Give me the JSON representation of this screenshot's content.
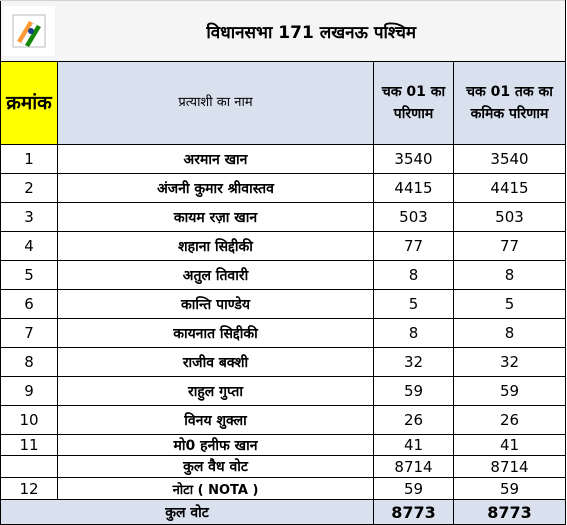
{
  "title": "विधानसभा 171 लखनऊ पश्चिम",
  "headers": {
    "serial": "क्रमांक",
    "name": "प्रत्याशी का नाम",
    "round_result": "चक 01 का परिणाम",
    "cumulative": "चक 01 तक का कमिक परिणाम"
  },
  "rows": [
    {
      "serial": "1",
      "name": "अरमान खान",
      "round": "3540",
      "cumulative": "3540"
    },
    {
      "serial": "2",
      "name": "अंजनी कुमार श्रीवास्तव",
      "round": "4415",
      "cumulative": "4415"
    },
    {
      "serial": "3",
      "name": "कायम रज़ा खान",
      "round": "503",
      "cumulative": "503"
    },
    {
      "serial": "4",
      "name": "शहाना सिद्दीकी",
      "round": "77",
      "cumulative": "77"
    },
    {
      "serial": "5",
      "name": "अतुल तिवारी",
      "round": "8",
      "cumulative": "8"
    },
    {
      "serial": "6",
      "name": "कान्ति पाण्डेय",
      "round": "5",
      "cumulative": "5"
    },
    {
      "serial": "7",
      "name": "कायनात सिद्दीकी",
      "round": "8",
      "cumulative": "8"
    },
    {
      "serial": "8",
      "name": "राजीव बक्शी",
      "round": "32",
      "cumulative": "32"
    },
    {
      "serial": "9",
      "name": "राहुल गुप्ता",
      "round": "59",
      "cumulative": "59"
    },
    {
      "serial": "10",
      "name": "विनय शुक्ला",
      "round": "26",
      "cumulative": "26"
    },
    {
      "serial": "11",
      "name": "मो0 हनीफ खान",
      "round": "41",
      "cumulative": "41"
    }
  ],
  "valid_votes": {
    "label": "कुल वैध वोट",
    "round": "8714",
    "cumulative": "8714"
  },
  "nota": {
    "serial": "12",
    "label": "नोटा ( NOTA )",
    "round": "59",
    "cumulative": "59"
  },
  "total": {
    "label": "कुल वोट",
    "round": "8773",
    "cumulative": "8773"
  },
  "colors": {
    "header_bg": "#d9e1ef",
    "serial_header_bg": "#ffff00",
    "total_bg": "#d9e1ef"
  },
  "logo_icon": "ballot-box-icon"
}
